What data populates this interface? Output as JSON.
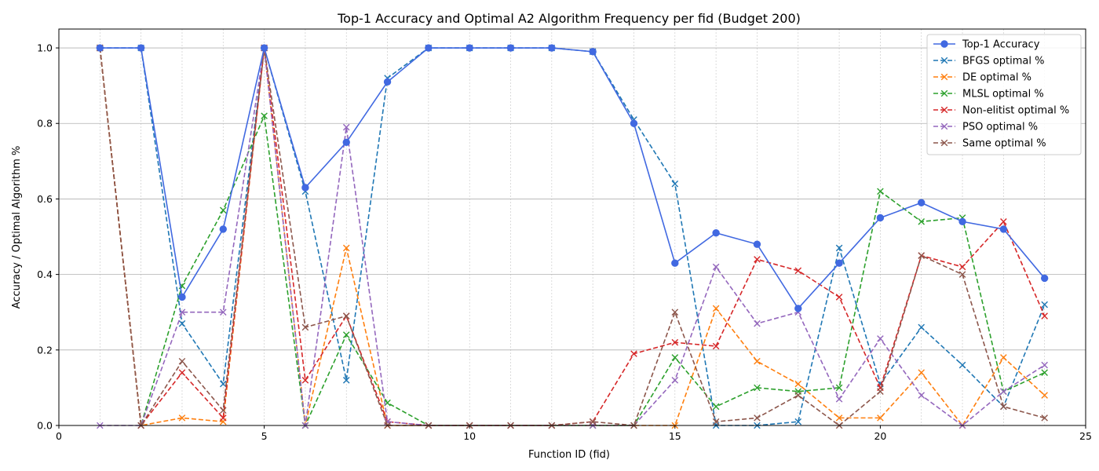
{
  "chart_data": {
    "type": "line",
    "title": "Top-1 Accuracy and Optimal A2 Algorithm Frequency per fid (Budget 200)",
    "xlabel": "Function ID (fid)",
    "ylabel": "Accuracy / Optimal Algorithm %",
    "xlim": [
      0,
      25
    ],
    "ylim": [
      0,
      1.05
    ],
    "xticks": [
      0,
      5,
      10,
      15,
      20,
      25
    ],
    "yticks": [
      0.0,
      0.2,
      0.4,
      0.6,
      0.8,
      1.0
    ],
    "xtick_labels": [
      "0",
      "5",
      "10",
      "15",
      "20",
      "25"
    ],
    "ytick_labels": [
      "0.0",
      "0.2",
      "0.4",
      "0.6",
      "0.8",
      "1.0"
    ],
    "grid": "major y solid, minor x dotted at each fid",
    "legend_position": "top-right",
    "x": [
      1,
      2,
      3,
      4,
      5,
      6,
      7,
      8,
      9,
      10,
      11,
      12,
      13,
      14,
      15,
      16,
      17,
      18,
      19,
      20,
      21,
      22,
      23,
      24
    ],
    "series": [
      {
        "name": "Top-1 Accuracy",
        "color": "#4169e1",
        "style": "solid",
        "marker": "circle",
        "values": [
          1.0,
          1.0,
          0.34,
          0.52,
          1.0,
          0.63,
          0.75,
          0.91,
          1.0,
          1.0,
          1.0,
          1.0,
          0.99,
          0.8,
          0.43,
          0.51,
          0.48,
          0.31,
          0.43,
          0.55,
          0.59,
          0.54,
          0.52,
          0.39
        ]
      },
      {
        "name": "BFGS optimal %",
        "color": "#1f77b4",
        "style": "dashed",
        "marker": "x",
        "values": [
          1.0,
          1.0,
          0.27,
          0.11,
          1.0,
          0.62,
          0.12,
          0.92,
          1.0,
          1.0,
          1.0,
          1.0,
          0.99,
          0.81,
          0.64,
          0.0,
          0.0,
          0.01,
          0.47,
          0.11,
          0.26,
          0.16,
          0.05,
          0.32
        ]
      },
      {
        "name": "DE optimal %",
        "color": "#ff7f0e",
        "style": "dashed",
        "marker": "x",
        "values": [
          1.0,
          0.0,
          0.02,
          0.01,
          1.0,
          0.0,
          0.47,
          0.0,
          0.0,
          0.0,
          0.0,
          0.0,
          0.0,
          0.0,
          0.0,
          0.31,
          0.17,
          0.11,
          0.02,
          0.02,
          0.14,
          0.0,
          0.18,
          0.08
        ]
      },
      {
        "name": "MLSL optimal %",
        "color": "#2ca02c",
        "style": "dashed",
        "marker": "x",
        "values": [
          1.0,
          0.0,
          0.37,
          0.57,
          0.82,
          0.0,
          0.24,
          0.06,
          0.0,
          0.0,
          0.0,
          0.0,
          0.0,
          0.0,
          0.18,
          0.05,
          0.1,
          0.09,
          0.1,
          0.62,
          0.54,
          0.55,
          0.09,
          0.14
        ]
      },
      {
        "name": "Non-elitist optimal %",
        "color": "#d62728",
        "style": "dashed",
        "marker": "x",
        "values": [
          1.0,
          0.0,
          0.14,
          0.02,
          1.0,
          0.12,
          0.29,
          0.01,
          0.0,
          0.0,
          0.0,
          0.0,
          0.01,
          0.19,
          0.22,
          0.21,
          0.44,
          0.41,
          0.34,
          0.1,
          0.45,
          0.42,
          0.54,
          0.29
        ]
      },
      {
        "name": "PSO optimal %",
        "color": "#9467bd",
        "style": "dashed",
        "marker": "x",
        "values": [
          0.0,
          0.0,
          0.3,
          0.3,
          1.0,
          0.0,
          0.79,
          0.01,
          0.0,
          0.0,
          0.0,
          0.0,
          0.0,
          0.0,
          0.12,
          0.42,
          0.27,
          0.3,
          0.07,
          0.23,
          0.08,
          0.0,
          0.09,
          0.16
        ]
      },
      {
        "name": "Same optimal %",
        "color": "#8c564b",
        "style": "dashed",
        "marker": "x",
        "values": [
          1.0,
          0.0,
          0.17,
          0.04,
          1.0,
          0.26,
          0.29,
          0.0,
          0.0,
          0.0,
          0.0,
          0.0,
          0.01,
          0.0,
          0.3,
          0.01,
          0.02,
          0.08,
          0.0,
          0.09,
          0.45,
          0.4,
          0.05,
          0.02
        ]
      }
    ]
  }
}
